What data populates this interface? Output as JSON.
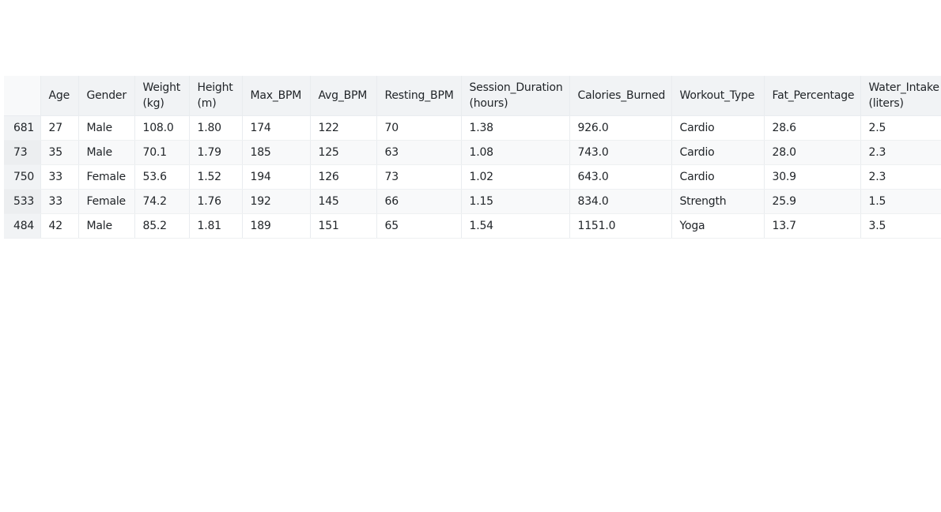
{
  "table": {
    "index_header": "",
    "columns": [
      "Age",
      "Gender",
      "Weight (kg)",
      "Height (m)",
      "Max_BPM",
      "Avg_BPM",
      "Resting_BPM",
      "Session_Duration (hours)",
      "Calories_Burned",
      "Workout_Type",
      "Fat_Percentage",
      "Water_Intake (liters)"
    ],
    "rows": [
      {
        "index": "681",
        "cells": [
          "27",
          "Male",
          "108.0",
          "1.80",
          "174",
          "122",
          "70",
          "1.38",
          "926.0",
          "Cardio",
          "28.6",
          "2.5"
        ]
      },
      {
        "index": "73",
        "cells": [
          "35",
          "Male",
          "70.1",
          "1.79",
          "185",
          "125",
          "63",
          "1.08",
          "743.0",
          "Cardio",
          "28.0",
          "2.3"
        ]
      },
      {
        "index": "750",
        "cells": [
          "33",
          "Female",
          "53.6",
          "1.52",
          "194",
          "126",
          "73",
          "1.02",
          "643.0",
          "Cardio",
          "30.9",
          "2.3"
        ]
      },
      {
        "index": "533",
        "cells": [
          "33",
          "Female",
          "74.2",
          "1.76",
          "192",
          "145",
          "66",
          "1.15",
          "834.0",
          "Strength",
          "25.9",
          "1.5"
        ]
      },
      {
        "index": "484",
        "cells": [
          "42",
          "Male",
          "85.2",
          "1.81",
          "189",
          "151",
          "65",
          "1.54",
          "1151.0",
          "Yoga",
          "13.7",
          "3.5"
        ]
      }
    ]
  }
}
